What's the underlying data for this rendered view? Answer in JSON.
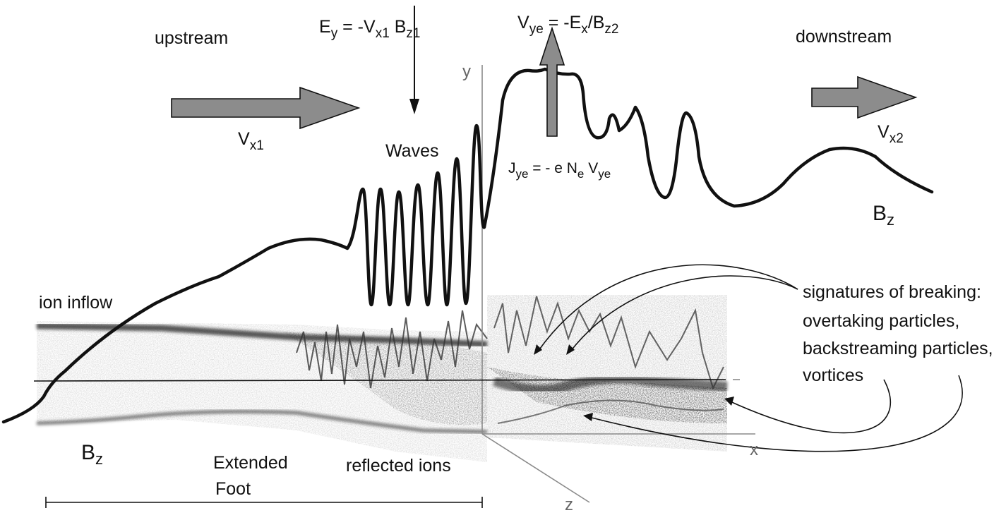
{
  "labels": {
    "upstream": "upstream",
    "downstream": "downstream",
    "waves": "Waves",
    "ion_inflow": "ion inflow",
    "extended": "Extended",
    "foot": "Foot",
    "reflected_ions": "reflected ions",
    "sig1": "signatures of breaking:",
    "sig2": "overtaking particles,",
    "sig3": "backstreaming particles,",
    "sig4": "vortices",
    "vx1_base": "V",
    "vx1_sub": "x1",
    "vx2_base": "V",
    "vx2_sub": "x2",
    "bz_base": "B",
    "bz_sub": "z",
    "ey": {
      "a": "E",
      "a_sub": "y",
      "b": " = -V",
      "b_sub": "x1",
      "c": " B",
      "c_sub": "z1"
    },
    "vye": {
      "a": "V",
      "a_sub": "ye",
      "b": " = -E",
      "b_sub": "x",
      "c": "/B",
      "c_sub": "z2"
    },
    "jye": {
      "a": "J",
      "a_sub": "ye",
      "b": " = - e N",
      "b_sub": "e",
      "c": " V",
      "c_sub": "ye"
    }
  },
  "axes": {
    "y": "y",
    "x": "x",
    "z": "z"
  },
  "colors": {
    "arrow_fill": "#8c8c8c",
    "line": "#111111",
    "axis": "#888888",
    "particles": "#333333"
  }
}
